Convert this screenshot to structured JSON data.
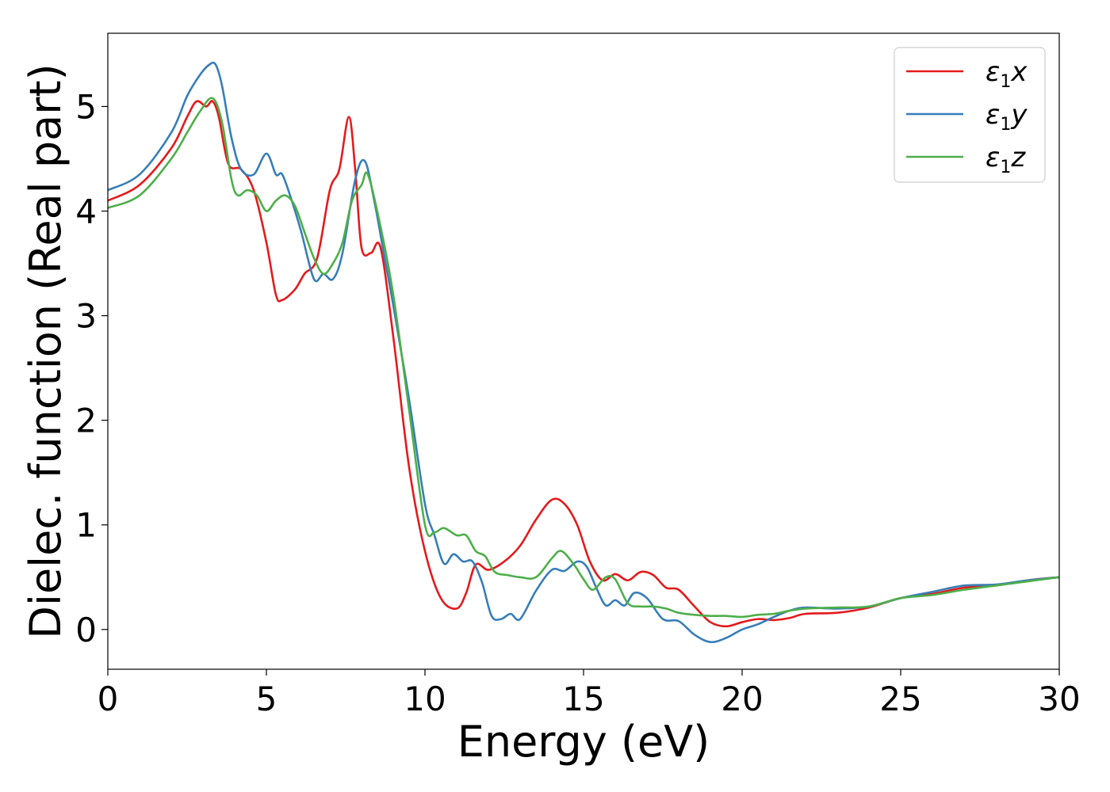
{
  "chart_data": {
    "type": "line",
    "xlabel": "Energy (eV)",
    "ylabel": "Dielec. function (Real part)",
    "xlim": [
      0,
      30
    ],
    "ylim": [
      -0.38,
      5.7
    ],
    "xticks": [
      0,
      5,
      10,
      15,
      20,
      25,
      30
    ],
    "xtick_labels": [
      "0",
      "5",
      "10",
      "15",
      "20",
      "25",
      "30"
    ],
    "yticks": [
      0,
      1,
      2,
      3,
      4,
      5
    ],
    "ytick_labels": [
      "0",
      "1",
      "2",
      "3",
      "4",
      "5"
    ],
    "grid": false,
    "legend_position": "top-right",
    "series": [
      {
        "name": "ε₁x",
        "legend_base": "ε",
        "legend_sub": "1",
        "legend_var": "x",
        "color": "#e41a1c",
        "x": [
          0,
          1,
          2,
          2.5,
          2.8,
          3.1,
          3.3,
          3.5,
          3.8,
          4.2,
          4.6,
          5,
          5.3,
          5.5,
          5.9,
          6.2,
          6.6,
          7,
          7.3,
          7.6,
          7.8,
          8,
          8.3,
          8.6,
          9,
          9.5,
          10,
          10.5,
          11,
          11.3,
          11.6,
          12,
          12.5,
          13,
          13.5,
          14,
          14.4,
          14.8,
          15.2,
          15.6,
          16,
          16.4,
          16.8,
          17.2,
          17.6,
          18,
          18.5,
          19,
          19.5,
          20,
          20.5,
          21,
          21.5,
          22,
          23,
          24,
          25,
          26,
          27,
          28,
          29,
          30
        ],
        "y": [
          4.1,
          4.25,
          4.6,
          4.9,
          5.05,
          5.0,
          5.05,
          4.9,
          4.45,
          4.4,
          4.2,
          3.7,
          3.2,
          3.15,
          3.25,
          3.4,
          3.55,
          4.2,
          4.4,
          4.9,
          4.4,
          3.65,
          3.6,
          3.65,
          2.8,
          1.55,
          0.75,
          0.3,
          0.2,
          0.35,
          0.62,
          0.57,
          0.65,
          0.8,
          1.05,
          1.24,
          1.2,
          1.0,
          0.65,
          0.47,
          0.53,
          0.47,
          0.55,
          0.52,
          0.4,
          0.38,
          0.22,
          0.07,
          0.03,
          0.07,
          0.1,
          0.09,
          0.11,
          0.15,
          0.16,
          0.21,
          0.3,
          0.34,
          0.4,
          0.42,
          0.47,
          0.5
        ]
      },
      {
        "name": "ε₁y",
        "legend_base": "ε",
        "legend_sub": "1",
        "legend_var": "y",
        "color": "#377eb8",
        "x": [
          0,
          1,
          2,
          2.5,
          2.9,
          3.2,
          3.4,
          3.6,
          3.9,
          4.2,
          4.6,
          5,
          5.3,
          5.5,
          5.8,
          6.1,
          6.5,
          6.8,
          7.1,
          7.4,
          7.8,
          8.1,
          8.4,
          8.7,
          9,
          9.5,
          10,
          10.3,
          10.6,
          10.9,
          11.2,
          11.5,
          11.8,
          12.1,
          12.4,
          12.7,
          13,
          13.5,
          14,
          14.4,
          14.8,
          15.1,
          15.4,
          15.7,
          16,
          16.3,
          16.6,
          17,
          17.5,
          18,
          18.5,
          19,
          19.5,
          20,
          20.5,
          21,
          21.5,
          22,
          23,
          24,
          25,
          26,
          27,
          28,
          29,
          30
        ],
        "y": [
          4.2,
          4.35,
          4.75,
          5.1,
          5.3,
          5.4,
          5.4,
          5.2,
          4.7,
          4.4,
          4.35,
          4.55,
          4.35,
          4.35,
          4.1,
          3.8,
          3.35,
          3.4,
          3.35,
          3.6,
          4.3,
          4.48,
          4.1,
          3.6,
          3.1,
          2.2,
          1.2,
          0.9,
          0.63,
          0.72,
          0.65,
          0.65,
          0.45,
          0.13,
          0.1,
          0.15,
          0.1,
          0.37,
          0.57,
          0.56,
          0.65,
          0.6,
          0.4,
          0.23,
          0.28,
          0.23,
          0.35,
          0.3,
          0.1,
          0.08,
          -0.05,
          -0.12,
          -0.08,
          0.0,
          0.05,
          0.12,
          0.18,
          0.21,
          0.2,
          0.22,
          0.3,
          0.36,
          0.42,
          0.43,
          0.47,
          0.5
        ]
      },
      {
        "name": "ε₁z",
        "legend_base": "ε",
        "legend_sub": "1",
        "legend_var": "z",
        "color": "#4daf4a",
        "x": [
          0,
          1,
          2,
          2.5,
          2.9,
          3.3,
          3.6,
          3.9,
          4.1,
          4.4,
          4.7,
          5,
          5.3,
          5.6,
          5.9,
          6.2,
          6.5,
          6.8,
          7.1,
          7.4,
          7.7,
          8,
          8.2,
          8.6,
          9,
          9.5,
          10,
          10.3,
          10.6,
          11,
          11.3,
          11.6,
          11.9,
          12.2,
          12.6,
          13,
          13.5,
          14,
          14.3,
          14.7,
          15,
          15.3,
          15.7,
          16,
          16.4,
          16.8,
          17.2,
          17.6,
          18,
          18.5,
          19,
          19.5,
          20,
          20.5,
          21,
          21.5,
          22,
          23,
          24,
          25,
          26,
          27,
          28,
          29,
          30
        ],
        "y": [
          4.03,
          4.15,
          4.5,
          4.75,
          4.95,
          5.08,
          4.85,
          4.3,
          4.15,
          4.2,
          4.15,
          4.0,
          4.1,
          4.15,
          4.05,
          3.8,
          3.55,
          3.4,
          3.5,
          3.7,
          4.1,
          4.25,
          4.35,
          3.85,
          3.2,
          2.1,
          1.0,
          0.93,
          0.97,
          0.9,
          0.9,
          0.75,
          0.7,
          0.55,
          0.52,
          0.5,
          0.5,
          0.68,
          0.75,
          0.62,
          0.48,
          0.38,
          0.5,
          0.48,
          0.25,
          0.22,
          0.22,
          0.2,
          0.16,
          0.14,
          0.13,
          0.13,
          0.12,
          0.14,
          0.15,
          0.18,
          0.2,
          0.21,
          0.22,
          0.3,
          0.33,
          0.38,
          0.42,
          0.46,
          0.5
        ]
      }
    ]
  }
}
